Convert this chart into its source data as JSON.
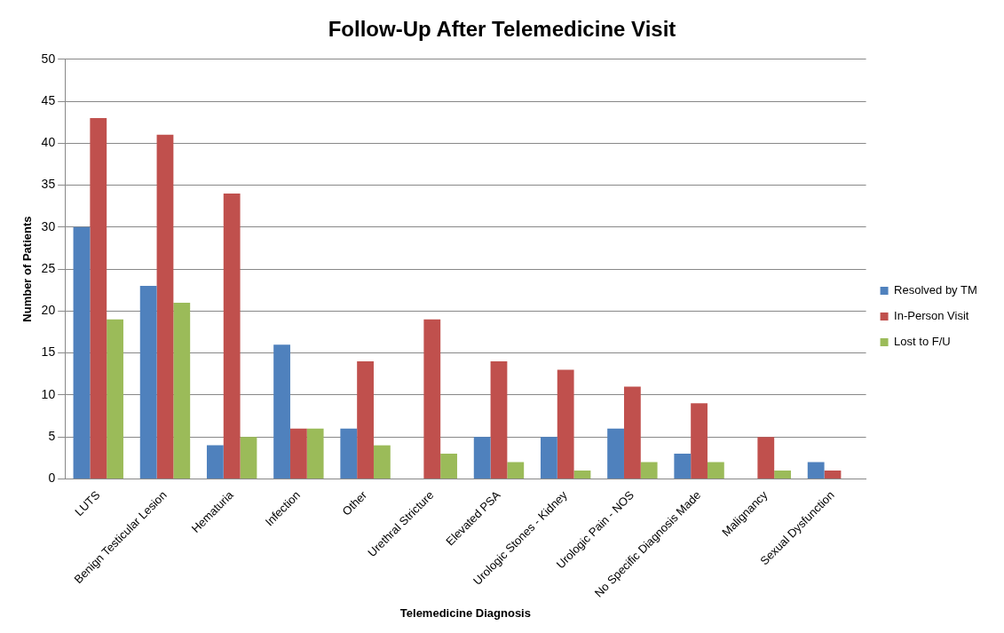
{
  "chart_data": {
    "type": "bar",
    "title": "Follow-Up After Telemedicine Visit",
    "xlabel": "Telemedicine Diagnosis",
    "ylabel": "Number of Patients",
    "categories": [
      "LUTS",
      "Benign Testicular Lesion",
      "Hematuria",
      "Infection",
      "Other",
      "Urethral Stricture",
      "Elevated PSA",
      "Urologic Stones - Kidney",
      "Urologic Pain - NOS",
      "No Specific Diagnosis Made",
      "Malignancy",
      "Sexual Dysfunction"
    ],
    "series": [
      {
        "name": "Resolved by TM",
        "color": "#4f81bd",
        "values": [
          30,
          23,
          4,
          16,
          6,
          0,
          5,
          5,
          6,
          3,
          0,
          2
        ]
      },
      {
        "name": "In-Person Visit",
        "color": "#c0504d",
        "values": [
          43,
          41,
          34,
          6,
          14,
          19,
          14,
          13,
          11,
          9,
          5,
          1
        ]
      },
      {
        "name": "Lost to F/U",
        "color": "#9bbb59",
        "values": [
          19,
          21,
          5,
          6,
          4,
          3,
          2,
          1,
          2,
          2,
          1,
          0
        ]
      }
    ],
    "ylim": [
      0,
      50
    ],
    "yticks": [
      0,
      5,
      10,
      15,
      20,
      25,
      30,
      35,
      40,
      45,
      50
    ],
    "grid": "y",
    "legend": "right"
  }
}
